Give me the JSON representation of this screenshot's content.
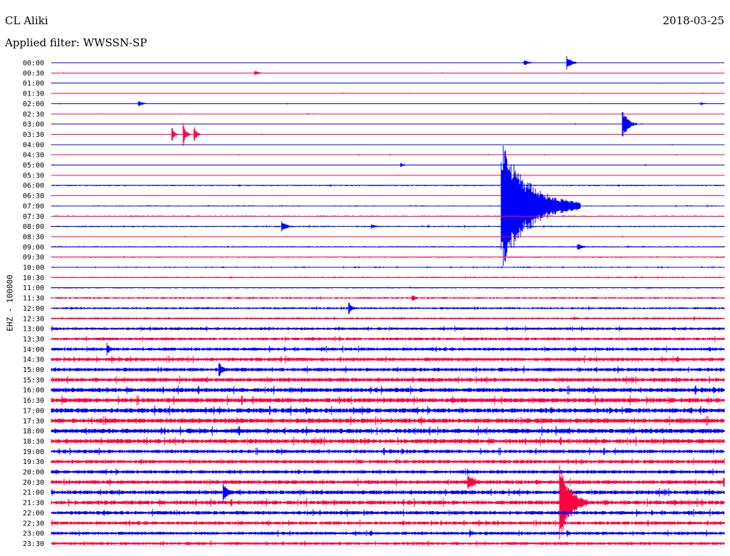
{
  "header": {
    "station": "CL Aliki",
    "filter": "Applied filter: WWSSN-SP",
    "date": "2018-03-25",
    "channel": "EHZ - 100000"
  },
  "colors": {
    "blue": "#0000ff",
    "red": "#ff0040"
  },
  "chart_data": {
    "type": "line",
    "title": "",
    "row_labels": [
      "00:00",
      "00:30",
      "01:00",
      "01:30",
      "02:00",
      "02:30",
      "03:00",
      "03:30",
      "04:00",
      "04:30",
      "05:00",
      "05:30",
      "06:00",
      "06:30",
      "07:00",
      "07:30",
      "08:00",
      "08:30",
      "09:00",
      "09:30",
      "10:00",
      "10:30",
      "11:00",
      "11:30",
      "12:00",
      "12:30",
      "13:00",
      "13:30",
      "14:00",
      "14:30",
      "15:00",
      "15:30",
      "16:00",
      "16:30",
      "17:00",
      "17:30",
      "18:00",
      "18:30",
      "19:00",
      "19:30",
      "20:00",
      "20:30",
      "21:00",
      "21:30",
      "22:00",
      "22:30",
      "23:00",
      "23:30"
    ],
    "row_minutes": 30,
    "noise_level": [
      0.3,
      0.3,
      0.4,
      0.5,
      0.5,
      0.5,
      0.5,
      0.5,
      0.5,
      0.6,
      0.6,
      0.5,
      0.9,
      0.6,
      0.7,
      0.7,
      0.9,
      0.7,
      0.9,
      0.8,
      0.8,
      0.9,
      0.9,
      1.2,
      1.4,
      1.5,
      1.9,
      1.9,
      2.2,
      2.4,
      2.5,
      2.7,
      3.0,
      3.2,
      3.2,
      3.2,
      3.2,
      3.0,
      2.5,
      2.4,
      2.4,
      2.6,
      2.8,
      2.8,
      2.5,
      2.3,
      2.2,
      2.0
    ],
    "events": [
      {
        "row": 0,
        "minute": 21.1,
        "amplitude": 4,
        "duration": 0.6
      },
      {
        "row": 0,
        "minute": 23.0,
        "amplitude": 10,
        "duration": 0.5
      },
      {
        "row": 1,
        "minute": 9.1,
        "amplitude": 3,
        "duration": 0.5
      },
      {
        "row": 4,
        "minute": 3.9,
        "amplitude": 4,
        "duration": 0.5
      },
      {
        "row": 4,
        "minute": 29.0,
        "amplitude": 2,
        "duration": 0.6
      },
      {
        "row": 6,
        "minute": 25.5,
        "amplitude": 20,
        "duration": 0.6
      },
      {
        "row": 7,
        "minute": 5.4,
        "amplitude": 9,
        "duration": 0.3
      },
      {
        "row": 7,
        "minute": 5.9,
        "amplitude": 16,
        "duration": 0.3
      },
      {
        "row": 7,
        "minute": 6.4,
        "amplitude": 9,
        "duration": 0.3
      },
      {
        "row": 10,
        "minute": 15.6,
        "amplitude": 3,
        "duration": 0.4
      },
      {
        "row": 14,
        "minute": 20.1,
        "amplitude": 90,
        "duration": 3.5
      },
      {
        "row": 16,
        "minute": 10.3,
        "amplitude": 7,
        "duration": 0.6
      },
      {
        "row": 16,
        "minute": 14.3,
        "amplitude": 3,
        "duration": 0.5
      },
      {
        "row": 18,
        "minute": 23.5,
        "amplitude": 5,
        "duration": 0.6
      },
      {
        "row": 23,
        "minute": 16.1,
        "amplitude": 5,
        "duration": 0.5
      },
      {
        "row": 24,
        "minute": 13.3,
        "amplitude": 8,
        "duration": 0.4
      },
      {
        "row": 28,
        "minute": 2.5,
        "amplitude": 8,
        "duration": 0.4
      },
      {
        "row": 30,
        "minute": 7.5,
        "amplitude": 10,
        "duration": 0.5
      },
      {
        "row": 41,
        "minute": 18.6,
        "amplitude": 12,
        "duration": 0.8
      },
      {
        "row": 41,
        "minute": 30.0,
        "amplitude": 10,
        "duration": 0.6
      },
      {
        "row": 42,
        "minute": 7.7,
        "amplitude": 12,
        "duration": 0.6
      },
      {
        "row": 43,
        "minute": 22.7,
        "amplitude": 60,
        "duration": 1.2
      },
      {
        "row": 43,
        "minute": 24.7,
        "amplitude": 5,
        "duration": 0.6
      },
      {
        "row": 46,
        "minute": 18.7,
        "amplitude": 5,
        "duration": 0.5
      },
      {
        "row": 46,
        "minute": 23.0,
        "amplitude": 5,
        "duration": 0.5
      }
    ]
  }
}
